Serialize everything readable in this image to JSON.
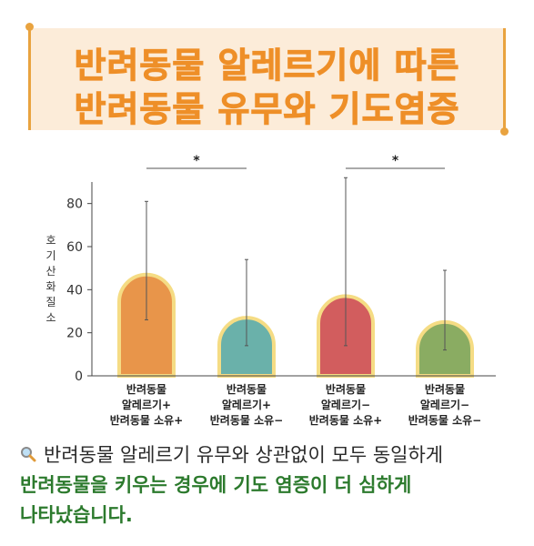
{
  "title": {
    "line1": "반려동물 알레르기에 따른",
    "line2": "반려동물 유무와 기도염증"
  },
  "chart_data": {
    "type": "bar",
    "ylabel": "호기산화질소",
    "ylim": [
      0,
      90
    ],
    "yticks": [
      0,
      20,
      40,
      60,
      80
    ],
    "categories": [
      [
        "반려동물",
        "알레르기+",
        "반려동물 소유+"
      ],
      [
        "반려동물",
        "알레르기+",
        "반려동물 소유−"
      ],
      [
        "반려동물",
        "알레르기−",
        "반려동물 소유+"
      ],
      [
        "반려동물",
        "알레르기−",
        "반려동물 소유−"
      ]
    ],
    "values": [
      47,
      27,
      37,
      25
    ],
    "error_low": [
      26,
      14,
      14,
      12
    ],
    "error_high": [
      81,
      54,
      92,
      49
    ],
    "colors": [
      "#e8954a",
      "#6ab1aa",
      "#d25d5e",
      "#8aac62"
    ],
    "outline_color": "#f5dc84",
    "significance": [
      {
        "from": 0,
        "to": 1,
        "label": "*"
      },
      {
        "from": 2,
        "to": 3,
        "label": "*"
      }
    ]
  },
  "caption": {
    "line1": "반려동물 알레르기 유무와 상관없이 모두 동일하게",
    "line2": "반려동물을 키우는 경우에 기도 염증이 더 심하게",
    "line3": "나타났습니다."
  },
  "icons": {
    "caption_icon": "magnifier-icon"
  }
}
